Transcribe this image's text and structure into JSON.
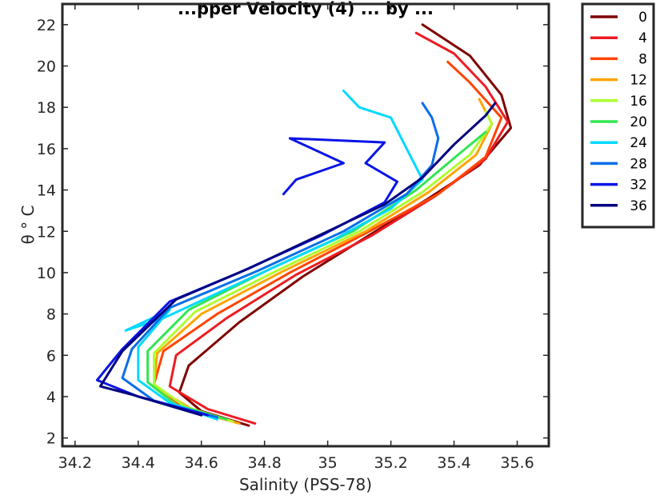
{
  "chart_data": {
    "type": "line",
    "title": "...pper Velocity (4) ... by ...",
    "xlabel": "Salinity (PSS-78)",
    "ylabel": "θ ° C",
    "xlim": [
      34.16,
      35.7
    ],
    "ylim": [
      1.6,
      23
    ],
    "xticks": [
      34.2,
      34.4,
      34.6,
      34.8,
      35,
      35.2,
      35.4,
      35.6
    ],
    "xtick_labels": [
      "34.2",
      "34.4",
      "34.6",
      "34.8",
      "35",
      "35.2",
      "35.4",
      "35.6"
    ],
    "yticks": [
      2,
      4,
      6,
      8,
      10,
      12,
      14,
      16,
      18,
      20,
      22
    ],
    "ytick_labels": [
      "2",
      "4",
      "6",
      "8",
      "10",
      "12",
      "14",
      "16",
      "18",
      "20",
      "22"
    ],
    "grid": false,
    "legend_position": "outside-top-right",
    "series": [
      {
        "name": "0",
        "color": "#800000",
        "points": [
          [
            34.75,
            2.6
          ],
          [
            34.6,
            3.3
          ],
          [
            34.53,
            4.2
          ],
          [
            34.56,
            5.5
          ],
          [
            34.72,
            7.6
          ],
          [
            34.92,
            9.8
          ],
          [
            35.12,
            11.7
          ],
          [
            35.32,
            13.6
          ],
          [
            35.48,
            15.2
          ],
          [
            35.58,
            17.0
          ],
          [
            35.55,
            18.6
          ],
          [
            35.45,
            20.5
          ],
          [
            35.3,
            22.0
          ]
        ]
      },
      {
        "name": "4",
        "color": "#ED1C24",
        "points": [
          [
            34.77,
            2.7
          ],
          [
            34.62,
            3.4
          ],
          [
            34.5,
            4.5
          ],
          [
            34.52,
            6.0
          ],
          [
            34.68,
            7.8
          ],
          [
            34.9,
            9.9
          ],
          [
            35.14,
            11.8
          ],
          [
            35.34,
            13.7
          ],
          [
            35.5,
            15.5
          ],
          [
            35.57,
            17.3
          ],
          [
            35.5,
            19.0
          ],
          [
            35.4,
            20.6
          ],
          [
            35.28,
            21.6
          ]
        ]
      },
      {
        "name": "8",
        "color": "#FF4500",
        "points": [
          [
            34.7,
            2.8
          ],
          [
            34.55,
            3.4
          ],
          [
            34.45,
            4.6
          ],
          [
            34.48,
            6.2
          ],
          [
            34.65,
            8.0
          ],
          [
            34.88,
            10.0
          ],
          [
            35.12,
            11.9
          ],
          [
            35.35,
            13.8
          ],
          [
            35.5,
            15.6
          ],
          [
            35.55,
            17.5
          ],
          [
            35.45,
            19.2
          ],
          [
            35.38,
            20.2
          ]
        ]
      },
      {
        "name": "12",
        "color": "#FFA500",
        "points": [
          [
            34.72,
            2.7
          ],
          [
            34.58,
            3.3
          ],
          [
            34.45,
            4.5
          ],
          [
            34.46,
            6.1
          ],
          [
            34.6,
            8.0
          ],
          [
            34.85,
            10.0
          ],
          [
            35.12,
            12.0
          ],
          [
            35.32,
            13.9
          ],
          [
            35.47,
            15.7
          ],
          [
            35.52,
            17.2
          ],
          [
            35.48,
            18.4
          ]
        ]
      },
      {
        "name": "16",
        "color": "#ADFF2F",
        "points": [
          [
            34.7,
            2.8
          ],
          [
            34.55,
            3.5
          ],
          [
            34.45,
            4.6
          ],
          [
            34.45,
            6.1
          ],
          [
            34.58,
            8.1
          ],
          [
            34.84,
            10.1
          ],
          [
            35.1,
            12.0
          ],
          [
            35.3,
            13.9
          ],
          [
            35.45,
            15.7
          ],
          [
            35.52,
            17.2
          ],
          [
            35.5,
            17.8
          ]
        ]
      },
      {
        "name": "20",
        "color": "#32E650",
        "points": [
          [
            34.68,
            2.9
          ],
          [
            34.52,
            3.6
          ],
          [
            34.43,
            4.7
          ],
          [
            34.43,
            6.2
          ],
          [
            34.56,
            8.2
          ],
          [
            34.82,
            10.2
          ],
          [
            35.08,
            12.0
          ],
          [
            35.28,
            14.0
          ],
          [
            35.42,
            15.8
          ],
          [
            35.5,
            16.8
          ]
        ]
      },
      {
        "name": "24",
        "color": "#00D9FF",
        "points": [
          [
            34.65,
            2.9
          ],
          [
            34.5,
            3.7
          ],
          [
            34.4,
            4.8
          ],
          [
            34.4,
            6.4
          ],
          [
            34.5,
            8.2
          ],
          [
            34.36,
            7.2
          ],
          [
            34.48,
            7.8
          ],
          [
            34.75,
            9.7
          ],
          [
            35.02,
            11.6
          ],
          [
            35.2,
            13.1
          ],
          [
            35.3,
            14.5
          ],
          [
            35.25,
            16.0
          ],
          [
            35.2,
            17.5
          ],
          [
            35.1,
            18.0
          ],
          [
            35.05,
            18.8
          ]
        ]
      },
      {
        "name": "28",
        "color": "#0A6EE8",
        "points": [
          [
            34.65,
            3.0
          ],
          [
            34.45,
            3.8
          ],
          [
            34.35,
            4.9
          ],
          [
            34.38,
            6.3
          ],
          [
            34.5,
            8.3
          ],
          [
            34.78,
            10.1
          ],
          [
            35.05,
            12.0
          ],
          [
            35.25,
            13.8
          ],
          [
            35.33,
            15.2
          ],
          [
            35.35,
            16.5
          ],
          [
            35.33,
            17.5
          ],
          [
            35.3,
            18.2
          ]
        ]
      },
      {
        "name": "32",
        "color": "#0A14E6",
        "points": [
          [
            34.62,
            3.1
          ],
          [
            34.4,
            4.0
          ],
          [
            34.27,
            4.8
          ],
          [
            34.35,
            6.3
          ],
          [
            34.5,
            8.6
          ],
          [
            34.72,
            10.0
          ],
          [
            34.98,
            11.8
          ],
          [
            35.18,
            13.4
          ],
          [
            35.22,
            14.4
          ],
          [
            35.12,
            15.3
          ],
          [
            35.18,
            16.3
          ],
          [
            34.88,
            16.5
          ],
          [
            35.05,
            15.3
          ],
          [
            34.9,
            14.5
          ],
          [
            34.86,
            13.8
          ]
        ]
      },
      {
        "name": "36",
        "color": "#000080",
        "points": [
          [
            34.6,
            3.1
          ],
          [
            34.38,
            4.1
          ],
          [
            34.28,
            4.5
          ],
          [
            34.35,
            6.2
          ],
          [
            34.52,
            8.7
          ],
          [
            34.75,
            10.2
          ],
          [
            35.0,
            12.0
          ],
          [
            35.18,
            13.3
          ],
          [
            35.3,
            14.6
          ],
          [
            35.4,
            16.2
          ],
          [
            35.5,
            17.6
          ],
          [
            35.53,
            18.2
          ]
        ]
      }
    ]
  }
}
